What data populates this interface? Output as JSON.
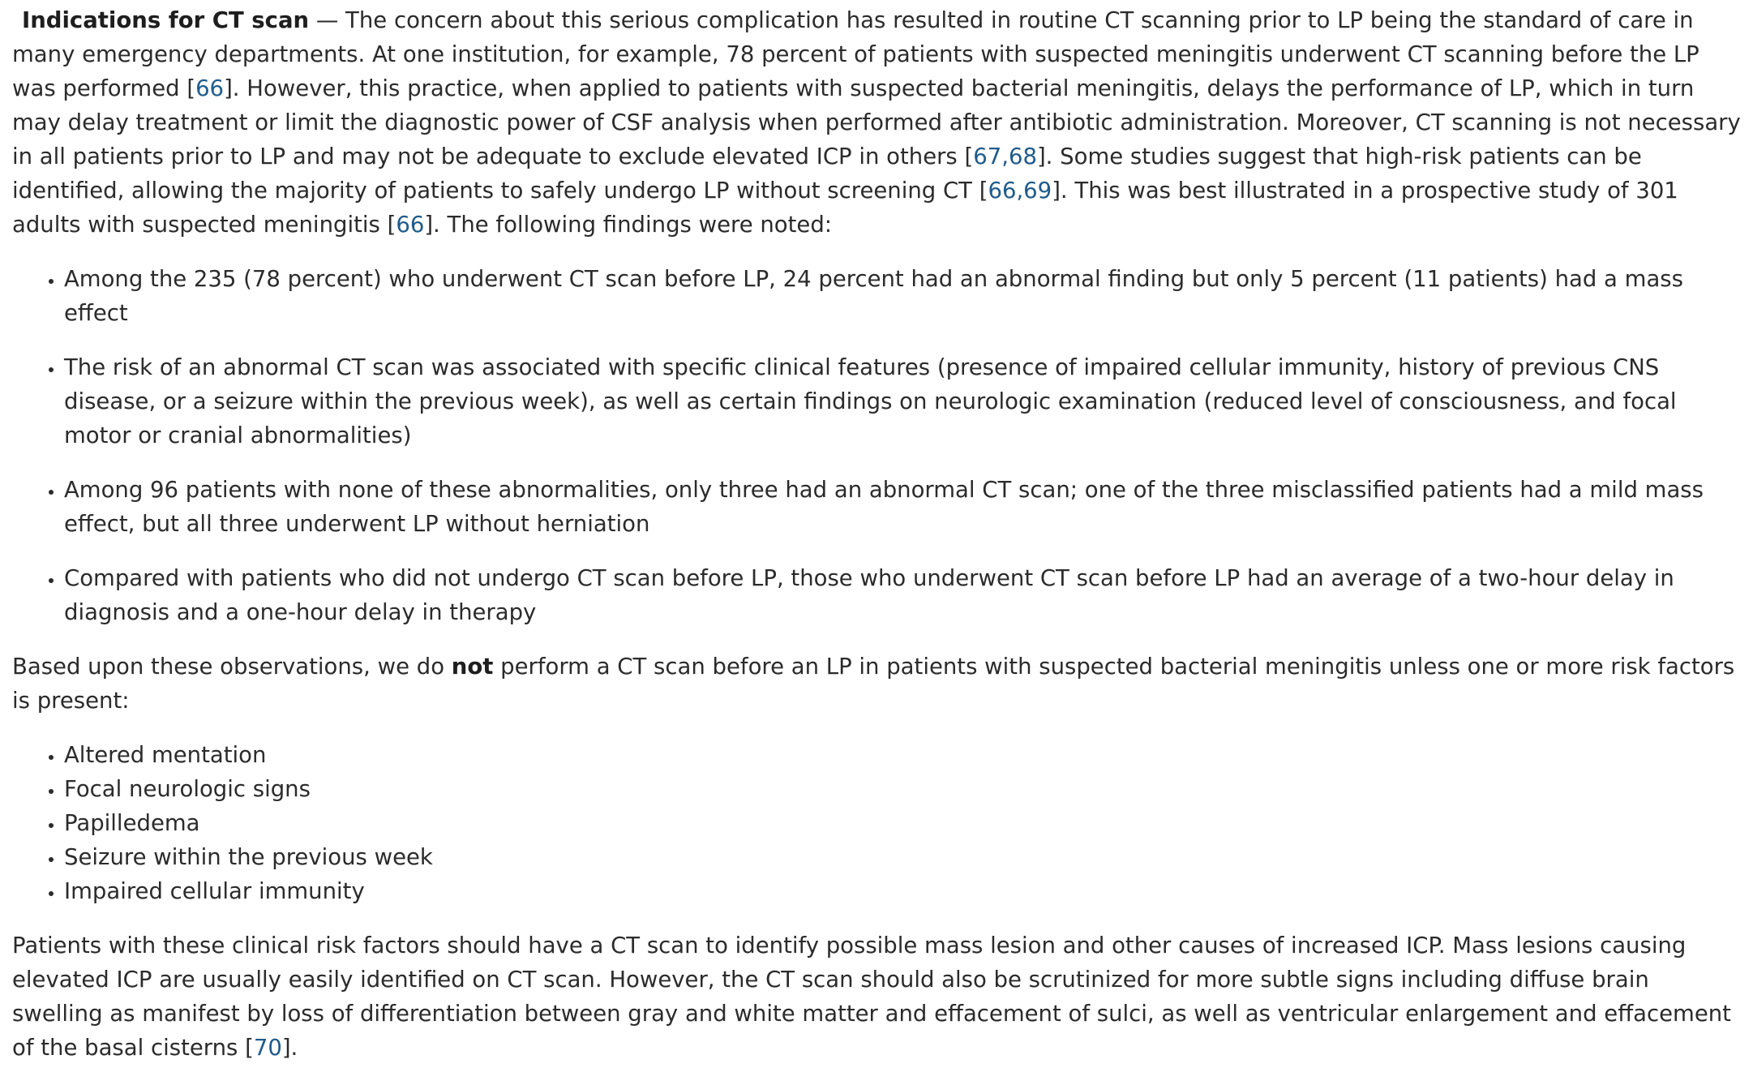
{
  "p1": {
    "heading": "Indications for CT scan",
    "t1": " — The concern about this serious complication has resulted in routine CT scanning prior to LP being the standard of care in many emergency departments. At one institution, for example, 78 percent of patients with suspected meningitis underwent CT scanning before the LP was performed [",
    "r1": "66",
    "t2": "]. However, this practice, when applied to patients with suspected bacterial meningitis, delays the performance of LP, which in turn may delay treatment or limit the diagnostic power of CSF analysis when performed after antibiotic administration. Moreover, CT scanning is not necessary in all patients prior to LP and may not be adequate to exclude elevated ICP in others [",
    "r2": "67,68",
    "t3": "]. Some studies suggest that high-risk patients can be identified, allowing the majority of patients to safely undergo LP without screening CT [",
    "r3": "66,69",
    "t4": "]. This was best illustrated in a prospective study of 301 adults with suspected meningitis [",
    "r4": "66",
    "t5": "]. The following findings were noted:"
  },
  "findings": [
    "Among the 235 (78 percent) who underwent CT scan before LP, 24 percent had an abnormal finding but only 5 percent (11 patients) had a mass effect",
    "The risk of an abnormal CT scan was associated with specific clinical features (presence of impaired cellular immunity, history of previous CNS disease, or a seizure within the previous week), as well as certain findings on neurologic examination (reduced level of consciousness, and focal motor or cranial abnormalities)",
    "Among 96 patients with none of these abnormalities, only three had an abnormal CT scan; one of the three misclassified patients had a mild mass effect, but all three underwent LP without herniation",
    "Compared with patients who did not undergo CT scan before LP, those who underwent CT scan before LP had an average of a two-hour delay in diagnosis and a one-hour delay in therapy"
  ],
  "p2": {
    "t1": "Based upon these observations, we do ",
    "bold": "not",
    "t2": " perform a CT scan before an LP in patients with suspected bacterial meningitis unless one or more risk factors is present:"
  },
  "risk_factors": [
    "Altered mentation",
    "Focal neurologic signs",
    "Papilledema",
    "Seizure within the previous week",
    "Impaired cellular immunity"
  ],
  "p3": {
    "t1": "Patients with these clinical risk factors should have a CT scan to identify possible mass lesion and other causes of increased ICP. Mass lesions causing elevated ICP are usually easily identified on CT scan. However, the CT scan should also be scrutinized for more subtle signs including diffuse brain swelling as manifest by loss of differentiation between gray and white matter and effacement of sulci, as well as ventricular enlargement and effacement of the basal cisterns [",
    "r1": "70",
    "t2": "]."
  }
}
